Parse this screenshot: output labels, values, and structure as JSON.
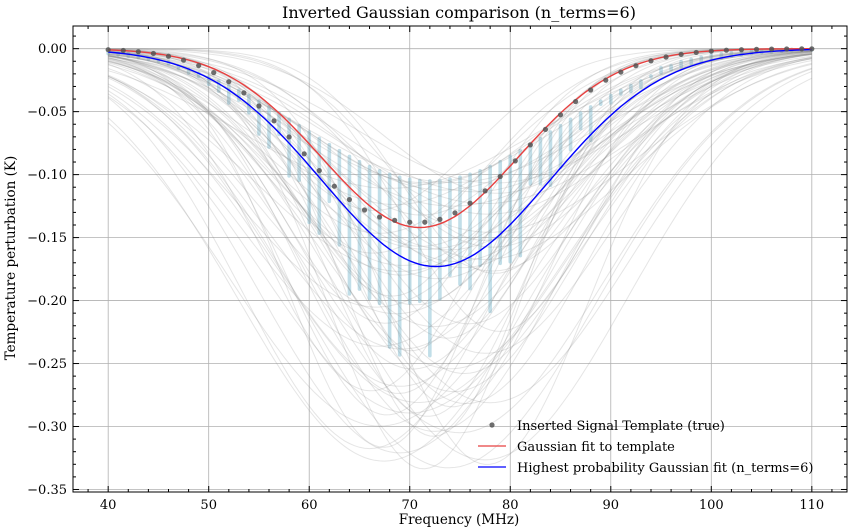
{
  "chart_data": {
    "type": "line",
    "title": "Inverted Gaussian comparison (n_terms=6)",
    "xlabel": "Frequency (MHz)",
    "ylabel": "Temperature perturbation (K)",
    "xlim": [
      36.5,
      113.5
    ],
    "ylim": [
      -0.352,
      0.018
    ],
    "xticks": [
      40,
      50,
      60,
      70,
      80,
      90,
      100,
      110
    ],
    "yticks": [
      0.0,
      -0.05,
      -0.1,
      -0.15,
      -0.2,
      -0.25,
      -0.3,
      -0.35
    ],
    "xtick_labels": [
      "40",
      "50",
      "60",
      "70",
      "80",
      "90",
      "100",
      "110"
    ],
    "ytick_labels": [
      "0.00",
      "−0.05",
      "−0.10",
      "−0.15",
      "−0.20",
      "−0.25",
      "−0.30",
      "−0.35"
    ],
    "grid": true,
    "legend_position": "lower-right",
    "series": [
      {
        "name": "Inserted Signal Template (true)",
        "kind": "scatter",
        "color": "#555555",
        "x": [
          40,
          41.5,
          43,
          44.5,
          46,
          47.5,
          49,
          50.5,
          52,
          53.5,
          55,
          56.5,
          58,
          59.5,
          61,
          62.5,
          64,
          65.5,
          67,
          68.5,
          70,
          71.5,
          73,
          74.5,
          76,
          77.5,
          79,
          80.5,
          82,
          83.5,
          85,
          86.5,
          88,
          89.5,
          91,
          92.5,
          94,
          95.5,
          97,
          98.5,
          100,
          101.5,
          103,
          104.5,
          106,
          107.5,
          109,
          110
        ],
        "y": [
          -0.0008,
          -0.0014,
          -0.0024,
          -0.0038,
          -0.006,
          -0.0091,
          -0.0134,
          -0.019,
          -0.0262,
          -0.0351,
          -0.0455,
          -0.0573,
          -0.0701,
          -0.0835,
          -0.0968,
          -0.1092,
          -0.1198,
          -0.1281,
          -0.1337,
          -0.1363,
          -0.1378,
          -0.1378,
          -0.1355,
          -0.1304,
          -0.1227,
          -0.1129,
          -0.1015,
          -0.0891,
          -0.0764,
          -0.0641,
          -0.0525,
          -0.042,
          -0.0328,
          -0.025,
          -0.0186,
          -0.0135,
          -0.0096,
          -0.0066,
          -0.0045,
          -0.003,
          -0.0019,
          -0.0012,
          -0.0008,
          -0.0005,
          -0.0003,
          -0.0002,
          -0.0001,
          -0.0001
        ]
      },
      {
        "name": "Gaussian fit to template",
        "kind": "line",
        "color": "#e84040",
        "amplitude": -0.142,
        "center": 71.0,
        "sigma": 9.8
      },
      {
        "name": "Highest probability Gaussian fit (n_terms=6)",
        "kind": "line",
        "color": "#0000ff",
        "amplitude": -0.173,
        "center": 72.6,
        "sigma": 11.3
      }
    ],
    "posterior_samples": {
      "color": "#888888",
      "amplitude_range": [
        -0.335,
        -0.105
      ],
      "center_range": [
        66,
        79
      ],
      "sigma_range": [
        9,
        15
      ],
      "count": 70
    },
    "posterior_points": {
      "color": "#8ec3d6",
      "x_start": 40,
      "x_end": 110,
      "x_step": 1,
      "min_y_range": [
        -0.172,
        -0.258
      ]
    }
  }
}
